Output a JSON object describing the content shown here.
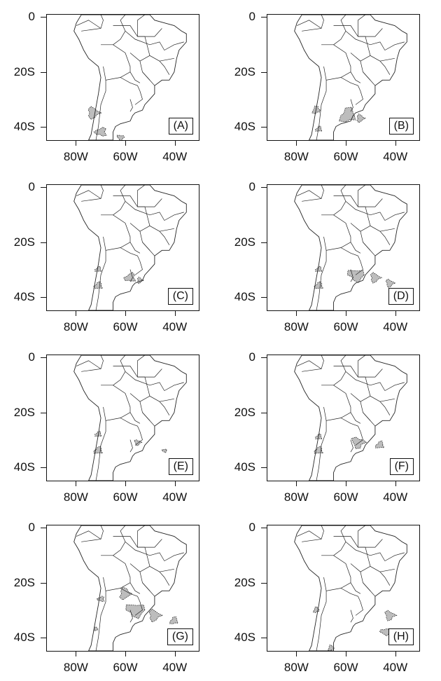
{
  "y_ticks": [
    "0",
    "20S",
    "40S"
  ],
  "x_ticks": [
    "80W",
    "60W",
    "40W"
  ],
  "colors": {
    "shade": "#bdbdbd",
    "lines": "#222222"
  },
  "panels": [
    {
      "label": "(A)",
      "regions": [
        [
          -73,
          -35,
          3
        ],
        [
          -70,
          -42,
          2.5
        ],
        [
          -62,
          -44,
          1.5
        ]
      ]
    },
    {
      "label": "(B)",
      "regions": [
        [
          -72,
          -34,
          2
        ],
        [
          -71,
          -41,
          1.5
        ],
        [
          -59,
          -36,
          4
        ],
        [
          -54,
          -37,
          2
        ]
      ]
    },
    {
      "label": "(C)",
      "regions": [
        [
          -71,
          -30,
          1.5
        ],
        [
          -71,
          -36,
          2
        ],
        [
          -58,
          -33,
          2.5
        ],
        [
          -54,
          -34,
          1.5
        ]
      ]
    },
    {
      "label": "(D)",
      "regions": [
        [
          -71,
          -30,
          1.5
        ],
        [
          -71,
          -36,
          2
        ],
        [
          -56,
          -32,
          3.5
        ],
        [
          -48,
          -33,
          2.5
        ],
        [
          -42,
          -35,
          2
        ]
      ]
    },
    {
      "label": "(E)",
      "regions": [
        [
          -71,
          -28,
          1.5
        ],
        [
          -71,
          -34,
          2
        ],
        [
          -55,
          -31,
          1.5
        ],
        [
          -44,
          -34,
          1
        ]
      ]
    },
    {
      "label": "(F)",
      "regions": [
        [
          -71,
          -29,
          1.5
        ],
        [
          -71,
          -34,
          2
        ],
        [
          -55,
          -31,
          3
        ],
        [
          -46,
          -32,
          2
        ]
      ]
    },
    {
      "label": "(G)",
      "regions": [
        [
          -70,
          -26,
          1.5
        ],
        [
          -60,
          -24,
          3
        ],
        [
          -56,
          -30,
          4
        ],
        [
          -48,
          -32,
          3
        ],
        [
          -40,
          -34,
          2
        ],
        [
          -72,
          -37,
          1
        ]
      ]
    },
    {
      "label": "(H)",
      "regions": [
        [
          -72,
          -30,
          1.5
        ],
        [
          -42,
          -32,
          2.5
        ],
        [
          -44,
          -38,
          2
        ],
        [
          -66,
          -44,
          1.5
        ]
      ]
    }
  ]
}
